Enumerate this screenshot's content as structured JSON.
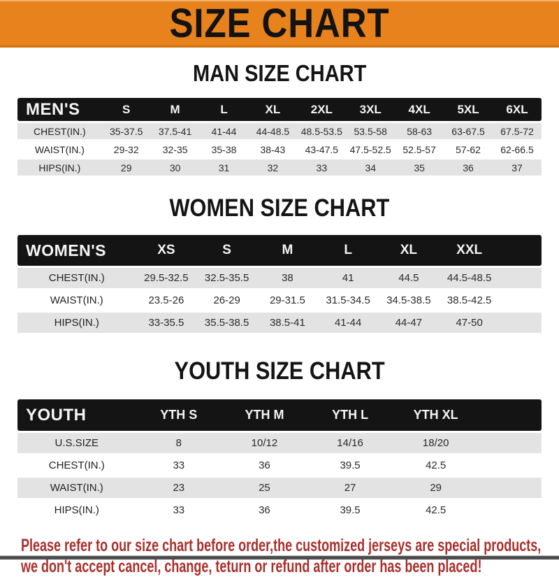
{
  "banner": {
    "title": "SIZE CHART"
  },
  "sections": {
    "man": {
      "heading": "MAN SIZE CHART",
      "table": {
        "header": [
          "MEN'S",
          "S",
          "M",
          "L",
          "XL",
          "2XL",
          "3XL",
          "4XL",
          "5XL",
          "6XL"
        ],
        "rows": [
          [
            "CHEST(IN.)",
            "35-37.5",
            "37.5-41",
            "41-44",
            "44-48.5",
            "48.5-53.5",
            "53.5-58",
            "58-63",
            "63-67.5",
            "67.5-72"
          ],
          [
            "WAIST(IN.)",
            "29-32",
            "32-35",
            "35-38",
            "38-43",
            "43-47.5",
            "47.5-52.5",
            "52.5-57",
            "57-62",
            "62-66.5"
          ],
          [
            "HIPS(IN.)",
            "29",
            "30",
            "31",
            "32",
            "33",
            "34",
            "35",
            "36",
            "37"
          ]
        ]
      }
    },
    "women": {
      "heading": "WOMEN SIZE CHART",
      "table": {
        "header": [
          "WOMEN'S",
          "XS",
          "S",
          "M",
          "L",
          "XL",
          "XXL"
        ],
        "rows": [
          [
            "CHEST(IN.)",
            "29.5-32.5",
            "32.5-35.5",
            "38",
            "41",
            "44.5",
            "44.5-48.5"
          ],
          [
            "WAIST(IN.)",
            "23.5-26",
            "26-29",
            "29-31.5",
            "31.5-34.5",
            "34.5-38.5",
            "38.5-42.5"
          ],
          [
            "HIPS(IN.)",
            "33-35.5",
            "35.5-38.5",
            "38.5-41",
            "41-44",
            "44-47",
            "47-50"
          ]
        ]
      }
    },
    "youth": {
      "heading": "YOUTH SIZE CHART",
      "table": {
        "header": [
          "YOUTH",
          "YTH S",
          "YTH M",
          "YTH L",
          "YTH XL"
        ],
        "rows": [
          [
            "U.S.SIZE",
            "8",
            "10/12",
            "14/16",
            "18/20"
          ],
          [
            "CHEST(IN.)",
            "33",
            "36",
            "39.5",
            "42.5"
          ],
          [
            "WAIST(IN.)",
            "23",
            "25",
            "27",
            "29"
          ],
          [
            "HIPS(IN.)",
            "33",
            "36",
            "39.5",
            "42.5"
          ]
        ]
      }
    }
  },
  "footer": {
    "line1": "Please refer to our size chart before order,the customized jerseys are special products,",
    "line2": "we don't accept cancel, change, teturn or refund after order has been placed!"
  },
  "colors": {
    "banner_orange": "#E8821C",
    "banner_edge_dark": "#D3720E",
    "header_bar_black": "#141414",
    "row_gray": "#E3E3E3",
    "row_white": "#FFFFFF",
    "note_red": "#A8302C",
    "bottom_bar_gray": "#4D4D4D"
  }
}
